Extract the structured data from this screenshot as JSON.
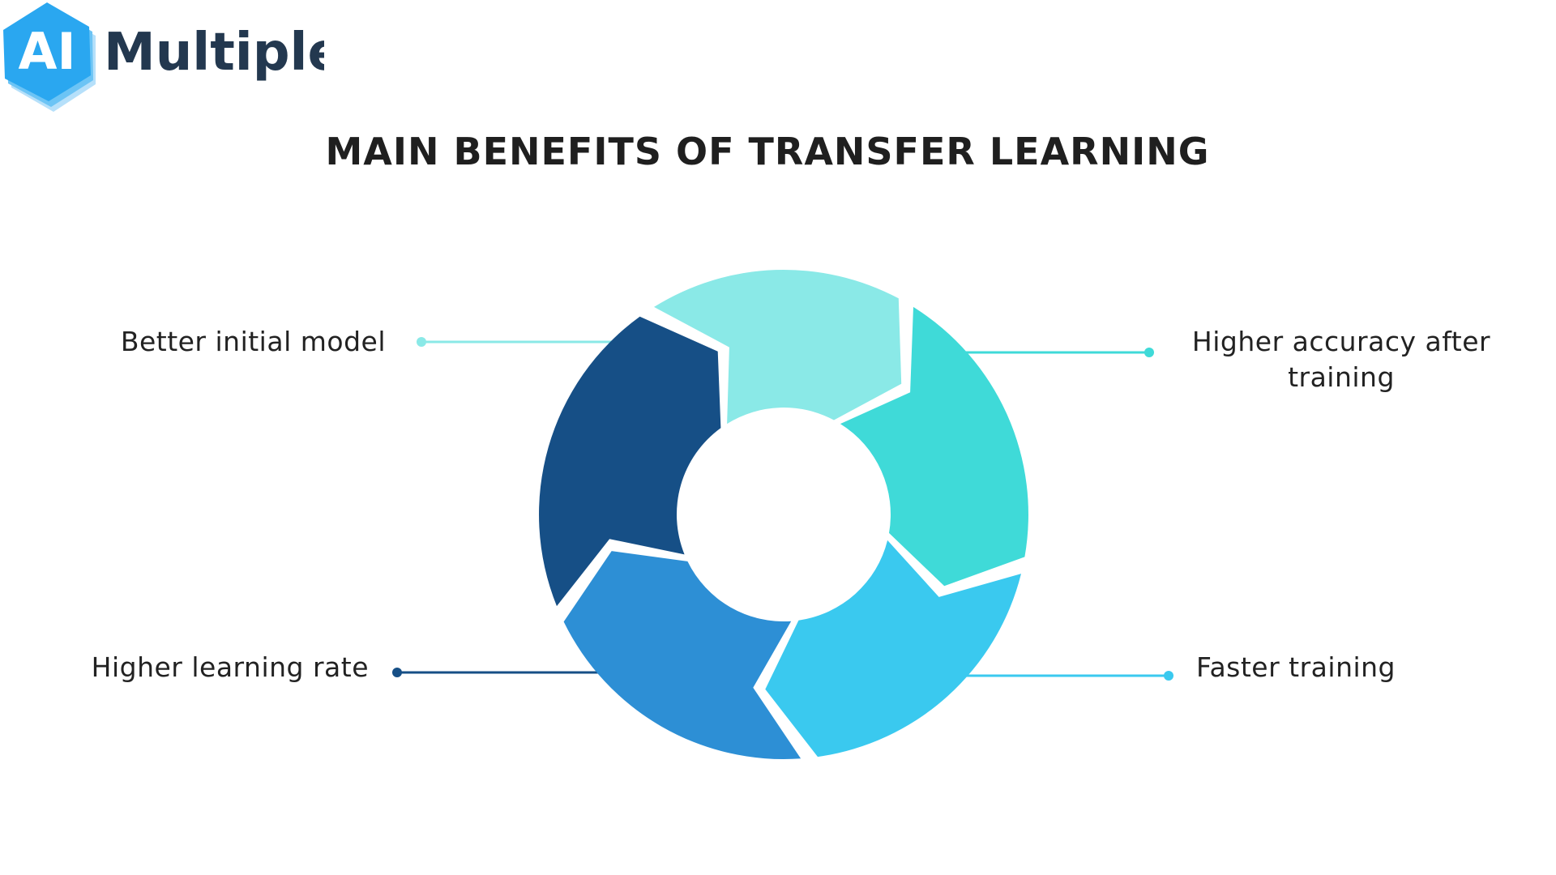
{
  "logo": {
    "prefix": "AI",
    "name": "Multiple"
  },
  "title": "MAIN BENEFITS OF TRANSFER LEARNING",
  "benefits": [
    {
      "label": "Better initial model",
      "color": "#8AE9E7"
    },
    {
      "label": "Higher accuracy after training",
      "color": "#3FDAD8"
    },
    {
      "label": "Faster training",
      "color": "#3AC9EF"
    },
    {
      "label": "Higher learning rate",
      "color": "#164F86"
    }
  ],
  "segment_colors": [
    "#8AE9E7",
    "#3FDAD8",
    "#3AC9EF",
    "#2D8FD5",
    "#164F86"
  ],
  "brand": {
    "hex_color": "#2AA7F0",
    "text_color": "#23384F"
  }
}
